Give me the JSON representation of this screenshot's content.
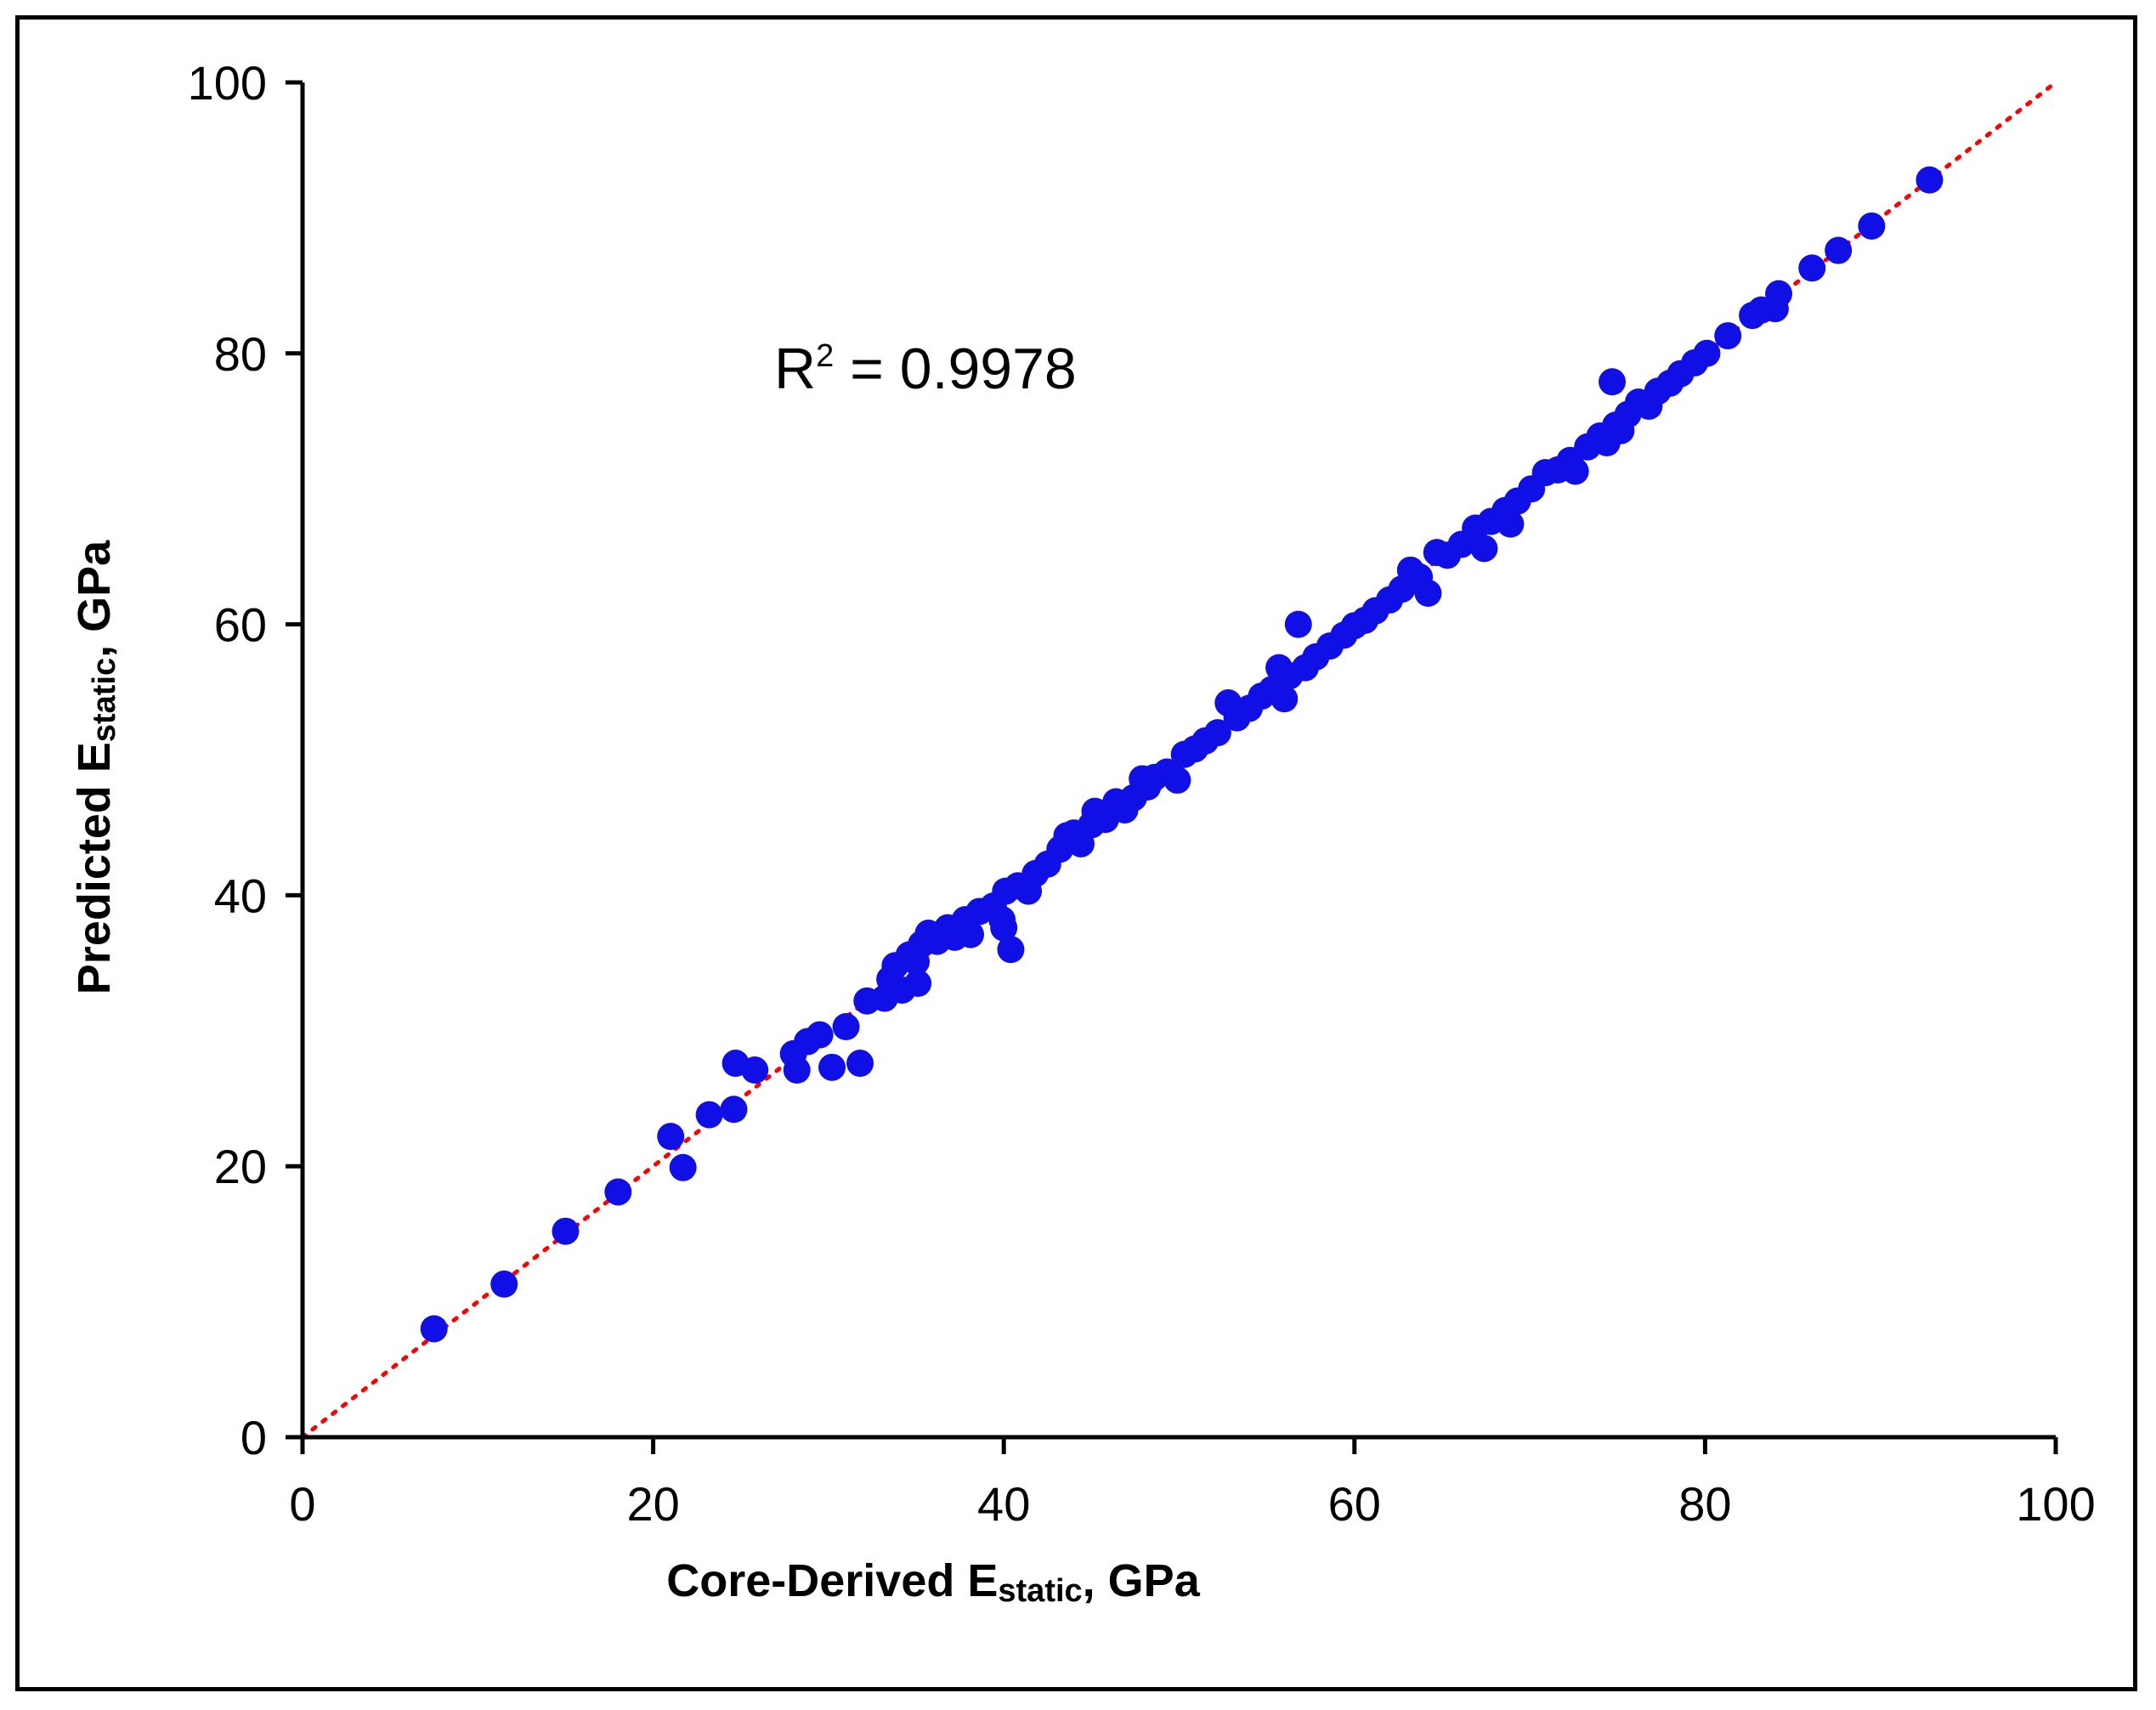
{
  "chart_data": {
    "type": "scatter",
    "xlabel": "Core-Derived E",
    "xlabel_sub": "static",
    "xlabel_tail": ", GPa",
    "ylabel": "Predicted E",
    "ylabel_sub": "static",
    "ylabel_tail": ", GPa",
    "xlim": [
      0,
      100
    ],
    "ylim": [
      0,
      100
    ],
    "xticks": [
      0,
      20,
      40,
      60,
      80,
      100
    ],
    "yticks": [
      0,
      20,
      40,
      60,
      80,
      100
    ],
    "grid": false,
    "annotation": {
      "text": "R",
      "sup": "2",
      "tail": " = 0.9978"
    },
    "reference_line": {
      "style": "dotted",
      "color": "#ff0000",
      "from": [
        0,
        0
      ],
      "to": [
        100,
        100
      ]
    },
    "marker_color": "#1010e6",
    "points": [
      [
        7.5,
        8.0
      ],
      [
        11.5,
        11.3
      ],
      [
        15,
        15.2
      ],
      [
        18,
        18.1
      ],
      [
        21,
        22.2
      ],
      [
        21.7,
        19.9
      ],
      [
        23.2,
        23.8
      ],
      [
        24.6,
        24.2
      ],
      [
        24.7,
        27.6
      ],
      [
        25.8,
        27.1
      ],
      [
        28,
        28.3
      ],
      [
        28.2,
        27.1
      ],
      [
        28.8,
        29.2
      ],
      [
        29.5,
        29.7
      ],
      [
        30.2,
        27.3
      ],
      [
        31,
        30.3
      ],
      [
        31.8,
        27.6
      ],
      [
        32.2,
        32.2
      ],
      [
        33.2,
        32.4
      ],
      [
        33.5,
        33.8
      ],
      [
        33.8,
        34.8
      ],
      [
        34.2,
        33.0
      ],
      [
        34.6,
        35.6
      ],
      [
        35,
        35.1
      ],
      [
        35.1,
        33.5
      ],
      [
        35.3,
        36.4
      ],
      [
        35.7,
        37.2
      ],
      [
        36.2,
        36.6
      ],
      [
        36.8,
        37.6
      ],
      [
        37.2,
        36.9
      ],
      [
        37.8,
        38.2
      ],
      [
        38.1,
        37.1
      ],
      [
        38.6,
        38.8
      ],
      [
        39.4,
        39.2
      ],
      [
        39.9,
        38.2
      ],
      [
        40,
        37.6
      ],
      [
        40.1,
        40.3
      ],
      [
        40.4,
        36.0
      ],
      [
        40.8,
        40.7
      ],
      [
        41.4,
        40.3
      ],
      [
        41.8,
        41.6
      ],
      [
        42.5,
        42.3
      ],
      [
        43.2,
        43.4
      ],
      [
        43.6,
        44.4
      ],
      [
        44,
        44.6
      ],
      [
        44.4,
        43.8
      ],
      [
        45,
        45.2
      ],
      [
        45.2,
        46.2
      ],
      [
        45.8,
        45.6
      ],
      [
        46.4,
        46.9
      ],
      [
        46.9,
        46.3
      ],
      [
        47.4,
        47.2
      ],
      [
        47.9,
        48.6
      ],
      [
        48.2,
        48.0
      ],
      [
        48.6,
        48.7
      ],
      [
        49.3,
        49.1
      ],
      [
        49.9,
        48.5
      ],
      [
        50.3,
        50.4
      ],
      [
        50.9,
        50.8
      ],
      [
        51.5,
        51.4
      ],
      [
        52.2,
        52.0
      ],
      [
        52.8,
        54.2
      ],
      [
        53.3,
        53.1
      ],
      [
        54,
        53.8
      ],
      [
        54.7,
        54.7
      ],
      [
        55.3,
        55.2
      ],
      [
        55.7,
        56.8
      ],
      [
        56,
        54.5
      ],
      [
        56.3,
        56.2
      ],
      [
        56.8,
        60.0
      ],
      [
        57.2,
        56.8
      ],
      [
        57.8,
        57.6
      ],
      [
        58.6,
        58.4
      ],
      [
        59.4,
        59.2
      ],
      [
        60,
        59.9
      ],
      [
        60.6,
        60.3
      ],
      [
        61.2,
        61.0
      ],
      [
        62,
        61.8
      ],
      [
        62.7,
        62.6
      ],
      [
        63.2,
        64.0
      ],
      [
        63.7,
        63.5
      ],
      [
        64.2,
        62.3
      ],
      [
        64.7,
        65.3
      ],
      [
        65.3,
        65.1
      ],
      [
        66.1,
        65.9
      ],
      [
        66.9,
        67.1
      ],
      [
        67.4,
        65.6
      ],
      [
        67.8,
        67.6
      ],
      [
        68.6,
        68.4
      ],
      [
        68.9,
        67.4
      ],
      [
        69.3,
        69.1
      ],
      [
        70.1,
        70.0
      ],
      [
        70.9,
        71.2
      ],
      [
        71.6,
        71.4
      ],
      [
        72.3,
        72.1
      ],
      [
        72.6,
        71.3
      ],
      [
        73.3,
        73.1
      ],
      [
        74,
        73.9
      ],
      [
        74.4,
        73.4
      ],
      [
        74.7,
        77.9
      ],
      [
        74.9,
        74.7
      ],
      [
        75.2,
        74.3
      ],
      [
        75.6,
        75.5
      ],
      [
        76.2,
        76.4
      ],
      [
        76.8,
        76.1
      ],
      [
        77.3,
        77.2
      ],
      [
        78,
        77.8
      ],
      [
        78.6,
        78.5
      ],
      [
        79.4,
        79.3
      ],
      [
        80.1,
        80.0
      ],
      [
        81.3,
        81.3
      ],
      [
        82.7,
        82.8
      ],
      [
        83.2,
        83.2
      ],
      [
        84,
        83.3
      ],
      [
        84.2,
        84.4
      ],
      [
        86.1,
        86.3
      ],
      [
        87.6,
        87.6
      ],
      [
        89.5,
        89.4
      ],
      [
        92.8,
        92.8
      ]
    ]
  }
}
